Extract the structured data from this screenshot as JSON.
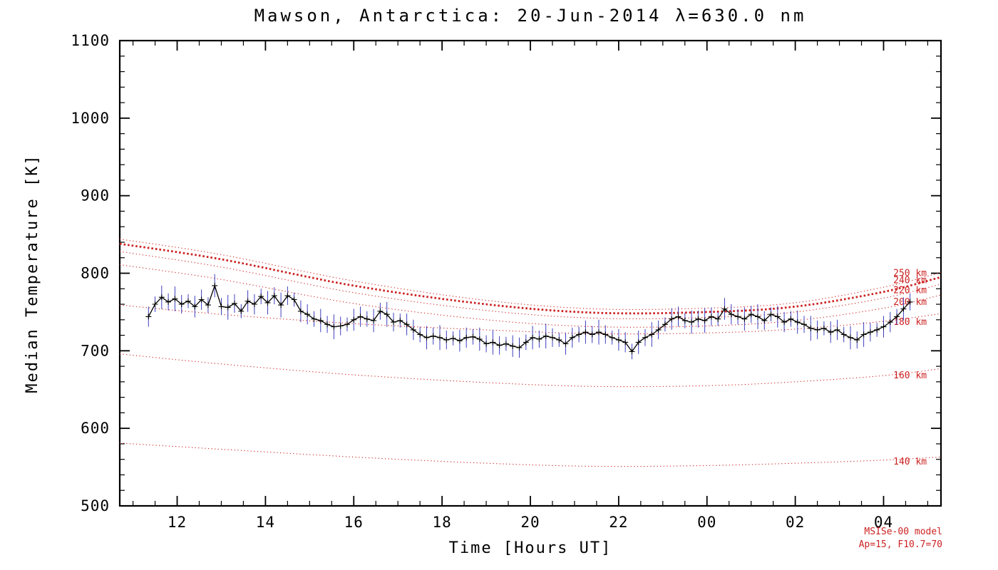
{
  "colors": {
    "background": "#ffffff",
    "axis": "#000000",
    "data_line": "#000000",
    "marker": "#000000",
    "error_bar": "#4040c0",
    "model": "#cc2222",
    "annotation": "#cc2222"
  },
  "chart_data": {
    "type": "line",
    "title": "Mawson, Antarctica: 20-Jun-2014 λ=630.0 nm",
    "station": "Mawson, Antarctica",
    "date": "20-Jun-2014",
    "wavelength_nm": 630.0,
    "xlabel": "Time [Hours UT]",
    "ylabel": "Median Temperature [K]",
    "xlim": [
      10.7,
      29.3
    ],
    "ylim": [
      500,
      1100
    ],
    "grid": false,
    "x_ticks": [
      {
        "value": 12,
        "label": "12"
      },
      {
        "value": 14,
        "label": "14"
      },
      {
        "value": 16,
        "label": "16"
      },
      {
        "value": 18,
        "label": "18"
      },
      {
        "value": 20,
        "label": "20"
      },
      {
        "value": 22,
        "label": "22"
      },
      {
        "value": 24,
        "label": "00"
      },
      {
        "value": 26,
        "label": "02"
      },
      {
        "value": 28,
        "label": "04"
      }
    ],
    "y_ticks": [
      {
        "value": 500,
        "label": "500"
      },
      {
        "value": 600,
        "label": "600"
      },
      {
        "value": 700,
        "label": "700"
      },
      {
        "value": 800,
        "label": "800"
      },
      {
        "value": 900,
        "label": "900"
      },
      {
        "value": 1000,
        "label": "1000"
      },
      {
        "value": 1100,
        "label": "1100"
      }
    ],
    "x_minor_step": 0.5,
    "y_minor_step": 20,
    "series": [
      {
        "name": "median-temperature-630nm",
        "marker": "plus",
        "x_start": 11.35,
        "x_step": 0.15,
        "temps": [
          744,
          760,
          769,
          763,
          767,
          760,
          764,
          757,
          766,
          759,
          784,
          757,
          756,
          761,
          751,
          764,
          760,
          770,
          762,
          771,
          759,
          771,
          766,
          751,
          747,
          741,
          739,
          734,
          731,
          732,
          734,
          740,
          744,
          741,
          739,
          751,
          747,
          737,
          739,
          734,
          727,
          721,
          717,
          719,
          717,
          714,
          716,
          713,
          717,
          718,
          715,
          709,
          711,
          707,
          709,
          706,
          704,
          711,
          717,
          715,
          719,
          717,
          714,
          709,
          717,
          721,
          724,
          721,
          724,
          721,
          717,
          714,
          711,
          699,
          711,
          717,
          721,
          727,
          734,
          741,
          744,
          739,
          737,
          741,
          739,
          744,
          741,
          754,
          747,
          744,
          741,
          747,
          744,
          739,
          747,
          744,
          737,
          741,
          737,
          734,
          729,
          727,
          729,
          724,
          727,
          721,
          717,
          714,
          721,
          724,
          727,
          731,
          737,
          744,
          754,
          763
        ],
        "errors_pattern": [
          13,
          10,
          15,
          11,
          16,
          12,
          9,
          14
        ]
      }
    ],
    "model": {
      "name": "MSISe-00",
      "hours": [
        10.7,
        13,
        16,
        19,
        21.5,
        24,
        26,
        28,
        29.3
      ],
      "series": [
        {
          "label": "250 km",
          "altitude_km": 250,
          "thick": false,
          "values": [
            844,
            824,
            790,
            765,
            754,
            755,
            762,
            782,
            801
          ],
          "label_at": [
            28.6,
            800
          ]
        },
        {
          "label": "240 km",
          "altitude_km": 240,
          "thick": true,
          "values": [
            838,
            818,
            784,
            760,
            749,
            750,
            757,
            776,
            795
          ],
          "label_at": [
            28.6,
            791
          ]
        },
        {
          "label": "220 km",
          "altitude_km": 220,
          "thick": false,
          "values": [
            828,
            808,
            775,
            752,
            742,
            743,
            750,
            768,
            786
          ],
          "label_at": [
            28.6,
            778
          ]
        },
        {
          "label": "200 km",
          "altitude_km": 200,
          "thick": false,
          "values": [
            811,
            792,
            761,
            740,
            731,
            732,
            739,
            755,
            772
          ],
          "label_at": [
            28.6,
            763
          ]
        },
        {
          "label": "180 km",
          "altitude_km": 180,
          "thick": false,
          "values": [
            759,
            747,
            735,
            727,
            722,
            723,
            728,
            738,
            748
          ],
          "label_at": [
            28.6,
            737
          ]
        },
        {
          "label": "160 km",
          "altitude_km": 160,
          "thick": false,
          "values": [
            696,
            683,
            669,
            659,
            654,
            655,
            660,
            668,
            677
          ],
          "label_at": [
            28.6,
            668
          ]
        },
        {
          "label": "140 km",
          "altitude_km": 140,
          "thick": false,
          "values": [
            581,
            573,
            563,
            555,
            551,
            552,
            555,
            559,
            563
          ],
          "label_at": [
            28.6,
            557
          ]
        }
      ]
    },
    "annotations": [
      "MSISe-00 model",
      "Ap=15, F10.7=70"
    ]
  }
}
